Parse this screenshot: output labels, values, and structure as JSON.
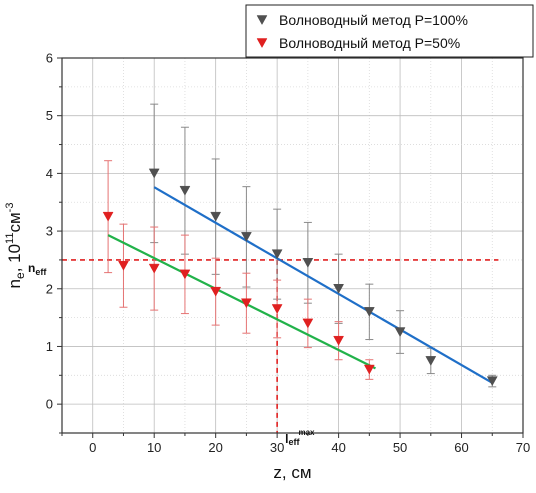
{
  "chart_data": {
    "type": "scatter",
    "xlabel": "z, см",
    "ylabel": {
      "base": "n",
      "sub": "e",
      "sep": ", 10",
      "sup": "11",
      "unit": "см",
      "unit_sup": "-3"
    },
    "xlim": [
      -5,
      70
    ],
    "ylim": [
      -0.5,
      6
    ],
    "xticks": [
      0,
      10,
      20,
      30,
      40,
      50,
      60,
      70
    ],
    "yticks": [
      0,
      1,
      2,
      3,
      4,
      5,
      6
    ],
    "grid": true,
    "legend_position": "top-right",
    "series": [
      {
        "name": "Волноводный метод P=100%",
        "color": "#505050",
        "marker": "triangle-down",
        "x": [
          10,
          15,
          20,
          25,
          30,
          35,
          40,
          45,
          50,
          55,
          65
        ],
        "y": [
          4.0,
          3.7,
          3.25,
          2.9,
          2.6,
          2.45,
          2.0,
          1.6,
          1.25,
          0.75,
          0.4
        ],
        "err": [
          1.2,
          1.1,
          1.0,
          0.87,
          0.78,
          0.7,
          0.6,
          0.48,
          0.37,
          0.22,
          0.1
        ],
        "fit": {
          "color": "#1f6fc8",
          "x": [
            10,
            65
          ],
          "y": [
            3.76,
            0.37
          ]
        }
      },
      {
        "name": "Волноводный метод P=50%",
        "color": "#e02020",
        "marker": "triangle-down",
        "x": [
          2.5,
          5,
          10,
          15,
          20,
          25,
          30,
          35,
          40,
          45
        ],
        "y": [
          3.25,
          2.4,
          2.35,
          2.25,
          1.95,
          1.75,
          1.65,
          1.4,
          1.1,
          0.6
        ],
        "err": [
          0.97,
          0.72,
          0.72,
          0.68,
          0.58,
          0.52,
          0.5,
          0.42,
          0.33,
          0.17
        ],
        "fit": {
          "color": "#22b24a",
          "x": [
            2.5,
            46
          ],
          "y": [
            2.93,
            0.62
          ]
        }
      }
    ],
    "reference_lines": [
      {
        "orientation": "horizontal",
        "value": 2.5,
        "color": "#e02020",
        "dashed": true,
        "label": {
          "base": "n",
          "sub": "eff"
        }
      },
      {
        "orientation": "vertical",
        "value": 30,
        "color": "#e02020",
        "dashed": true,
        "label": {
          "base": "l",
          "sub": "eff",
          "sup": "max"
        }
      }
    ]
  }
}
